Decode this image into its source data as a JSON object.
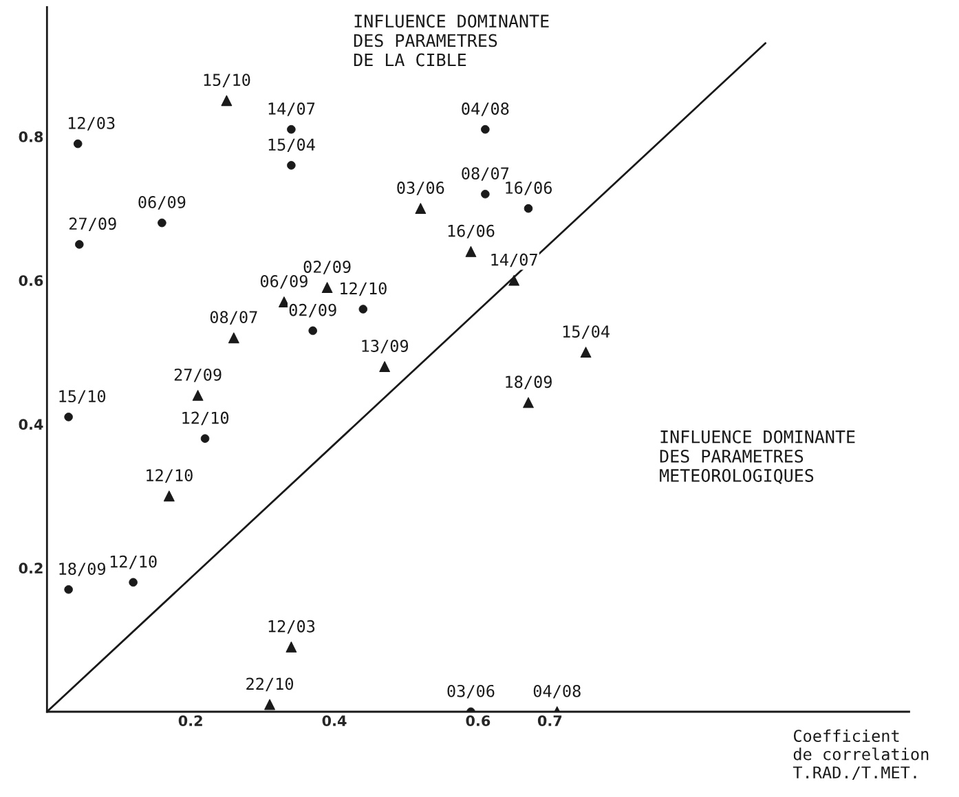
{
  "chart_data": {
    "type": "scatter",
    "xlabel": "Coefficient\nde correlation\nT.RAD./T.MET.",
    "xlim": [
      0,
      1.2
    ],
    "ylim": [
      0,
      0.98
    ],
    "xticks": [
      0.2,
      0.4,
      0.6,
      0.7
    ],
    "yticks": [
      0.2,
      0.4,
      0.6,
      0.8
    ],
    "grid": false,
    "series": [
      {
        "marker": "circle",
        "color": "#1a1a1a",
        "x": [
          0.043,
          0.045,
          0.16,
          0.34,
          0.34,
          0.61,
          0.61,
          0.67,
          0.44,
          0.37,
          0.03,
          0.22,
          0.03,
          0.12,
          0.59
        ],
        "values": [
          0.79,
          0.65,
          0.68,
          0.81,
          0.76,
          0.81,
          0.72,
          0.7,
          0.56,
          0.53,
          0.41,
          0.38,
          0.17,
          0.18,
          0.0
        ]
      },
      {
        "marker": "triangle",
        "color": "#1a1a1a",
        "x": [
          0.25,
          0.52,
          0.59,
          0.65,
          0.39,
          0.33,
          0.26,
          0.47,
          0.21,
          0.75,
          0.67,
          0.17,
          0.34,
          0.31,
          0.71
        ],
        "values": [
          0.85,
          0.7,
          0.64,
          0.6,
          0.59,
          0.57,
          0.52,
          0.48,
          0.44,
          0.5,
          0.43,
          0.3,
          0.09,
          0.01,
          0.0
        ]
      },
      {
        "type": "line",
        "line_style": "solid",
        "color": "#1a1a1a",
        "x": [
          0,
          1.0
        ],
        "values": [
          0,
          0.93
        ]
      }
    ],
    "annotations": [
      "INFLUENCE DOMINANTE\nDES PARAMETRES\nDE LA CIBLE",
      "INFLUENCE DOMINANTE\nDES PARAMETRES\nMETEOROLOGIQUES",
      {
        "text": "12/03",
        "x": 0.043,
        "y": 0.79
      },
      {
        "text": "27/09",
        "x": 0.045,
        "y": 0.65
      },
      {
        "text": "06/09",
        "x": 0.16,
        "y": 0.68
      },
      {
        "text": "14/07",
        "x": 0.34,
        "y": 0.81
      },
      {
        "text": "15/04",
        "x": 0.34,
        "y": 0.76
      },
      {
        "text": "04/08",
        "x": 0.61,
        "y": 0.81
      },
      {
        "text": "08/07",
        "x": 0.61,
        "y": 0.72
      },
      {
        "text": "16/06",
        "x": 0.67,
        "y": 0.7
      },
      {
        "text": "12/10",
        "x": 0.44,
        "y": 0.56
      },
      {
        "text": "02/09",
        "x": 0.37,
        "y": 0.53
      },
      {
        "text": "15/10",
        "x": 0.03,
        "y": 0.41
      },
      {
        "text": "12/10",
        "x": 0.22,
        "y": 0.38
      },
      {
        "text": "18/09",
        "x": 0.03,
        "y": 0.17
      },
      {
        "text": "12/10",
        "x": 0.12,
        "y": 0.18
      },
      {
        "text": "03/06",
        "x": 0.59,
        "y": 0.0
      },
      {
        "text": "15/10",
        "x": 0.25,
        "y": 0.85
      },
      {
        "text": "03/06",
        "x": 0.52,
        "y": 0.7
      },
      {
        "text": "16/06",
        "x": 0.59,
        "y": 0.64
      },
      {
        "text": "14/07",
        "x": 0.65,
        "y": 0.6
      },
      {
        "text": "02/09",
        "x": 0.39,
        "y": 0.59
      },
      {
        "text": "06/09",
        "x": 0.33,
        "y": 0.57
      },
      {
        "text": "08/07",
        "x": 0.26,
        "y": 0.52
      },
      {
        "text": "13/09",
        "x": 0.47,
        "y": 0.48
      },
      {
        "text": "27/09",
        "x": 0.21,
        "y": 0.44
      },
      {
        "text": "15/04",
        "x": 0.75,
        "y": 0.5
      },
      {
        "text": "18/09",
        "x": 0.67,
        "y": 0.43
      },
      {
        "text": "12/10",
        "x": 0.17,
        "y": 0.3
      },
      {
        "text": "12/03",
        "x": 0.34,
        "y": 0.09
      },
      {
        "text": "22/10",
        "x": 0.31,
        "y": 0.01
      },
      {
        "text": "04/08",
        "x": 0.71,
        "y": 0.0
      }
    ]
  }
}
